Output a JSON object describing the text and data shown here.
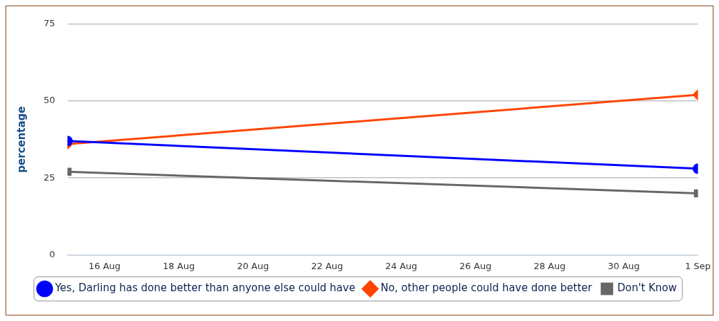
{
  "chart_data": {
    "type": "line",
    "ylabel": "percentage",
    "x": [
      "--08-15",
      "--09-01"
    ],
    "series": [
      {
        "name": "Yes, Darling has done better than anyone else could have",
        "color": "#0000ff",
        "values": [
          37,
          28
        ],
        "marker": "circle"
      },
      {
        "name": "No, other people could have done better",
        "color": "#ff4500",
        "values": [
          36,
          52
        ],
        "marker": "diamond"
      },
      {
        "name": "Don't Know",
        "color": "#666666",
        "values": [
          27,
          20
        ],
        "marker": "square"
      }
    ],
    "xlim": [
      "--08-15",
      "--09-01"
    ],
    "xticks": [
      {
        "value": "--08-16",
        "label": "16 Aug"
      },
      {
        "value": "--08-18",
        "label": "18 Aug"
      },
      {
        "value": "--08-20",
        "label": "20 Aug"
      },
      {
        "value": "--08-22",
        "label": "22 Aug"
      },
      {
        "value": "--08-24",
        "label": "24 Aug"
      },
      {
        "value": "--08-26",
        "label": "26 Aug"
      },
      {
        "value": "--08-28",
        "label": "28 Aug"
      },
      {
        "value": "--08-30",
        "label": "30 Aug"
      },
      {
        "value": "--09-01",
        "label": "1 Sep"
      }
    ],
    "ylim": [
      0,
      75
    ],
    "yticks": [
      0,
      25,
      50,
      75
    ],
    "grid": "y",
    "legend": "bottom",
    "line_style": "solid"
  }
}
